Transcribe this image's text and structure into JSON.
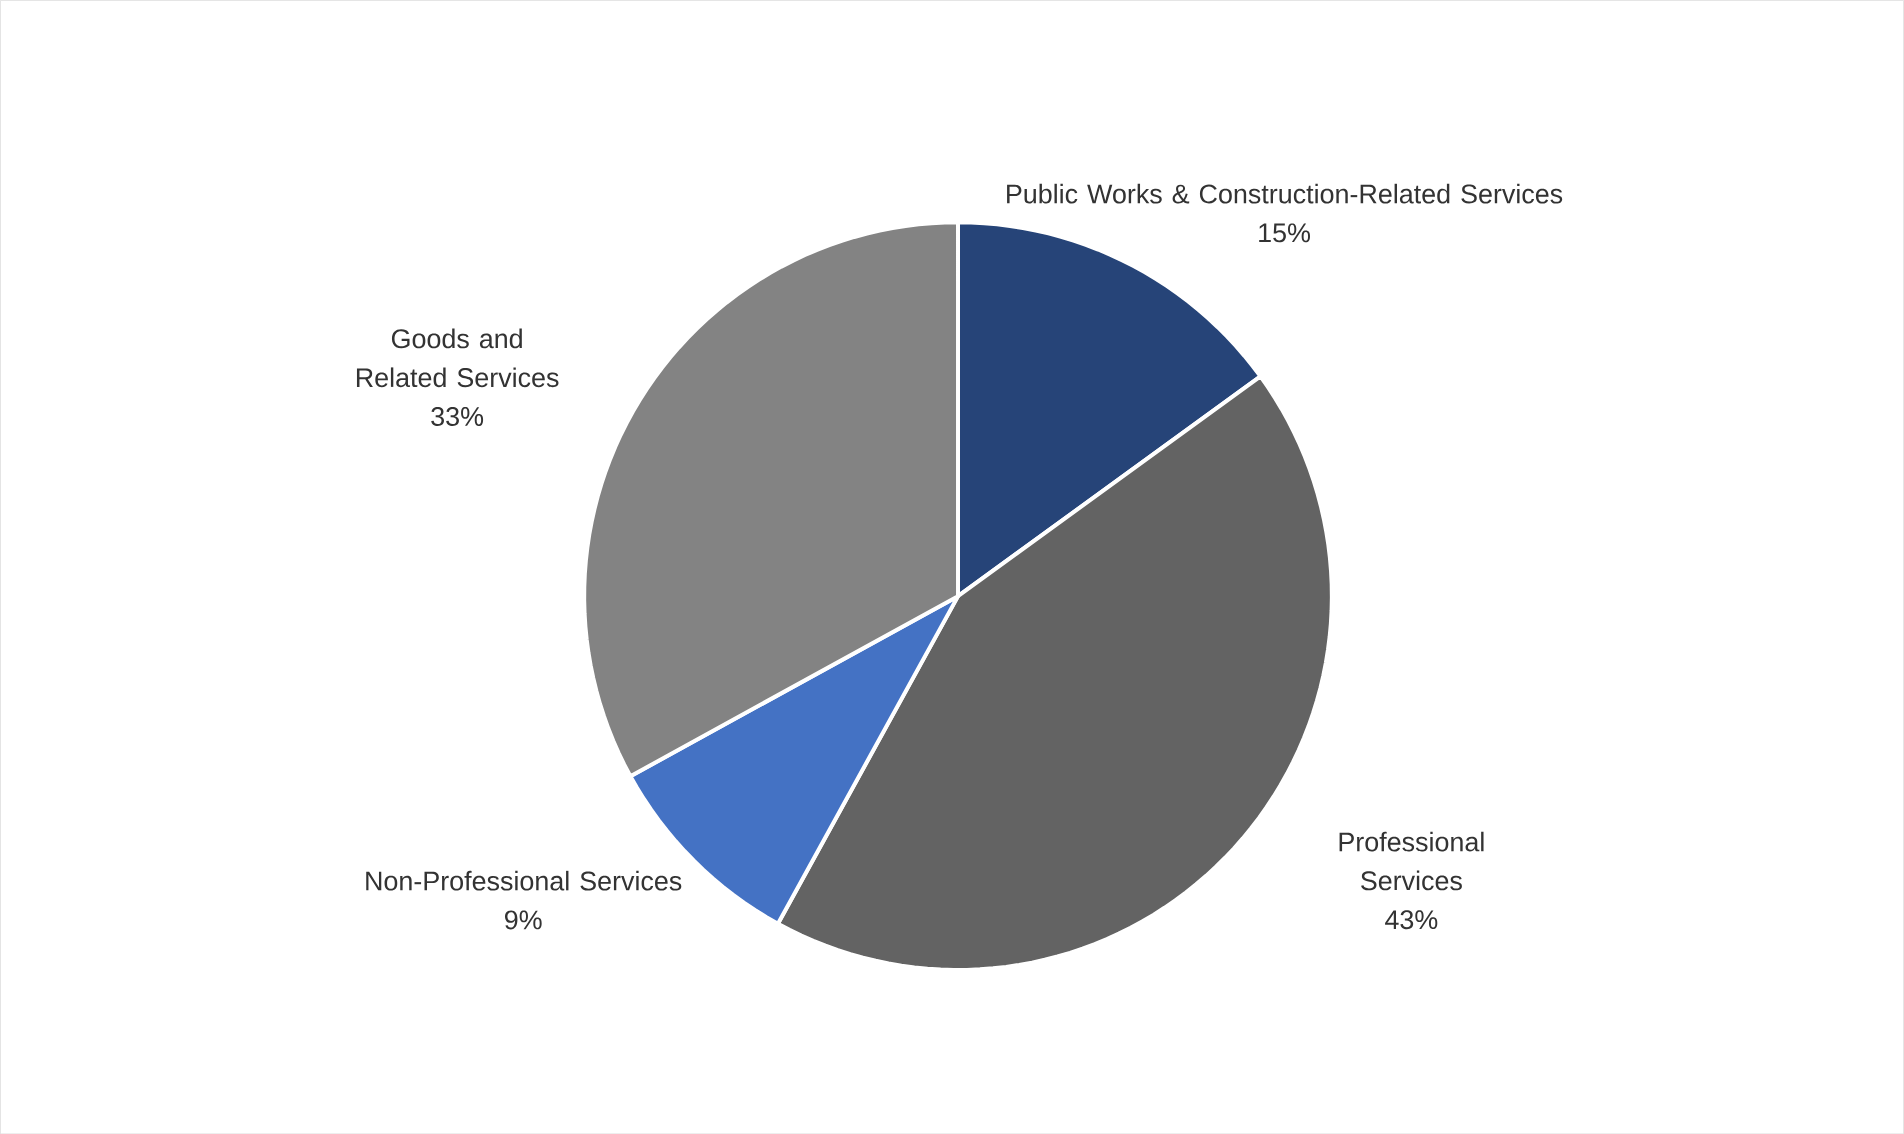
{
  "chart_data": {
    "type": "pie",
    "categories": [
      "Public Works & Construction-Related Services",
      "Professional Services",
      "Non-Professional Services",
      "Goods and Related Services"
    ],
    "values": [
      15,
      43,
      9,
      33
    ],
    "value_labels": [
      "15%",
      "43%",
      "9%",
      "33%"
    ],
    "colors": [
      "#264478",
      "#636363",
      "#4472c4",
      "#838383"
    ]
  }
}
